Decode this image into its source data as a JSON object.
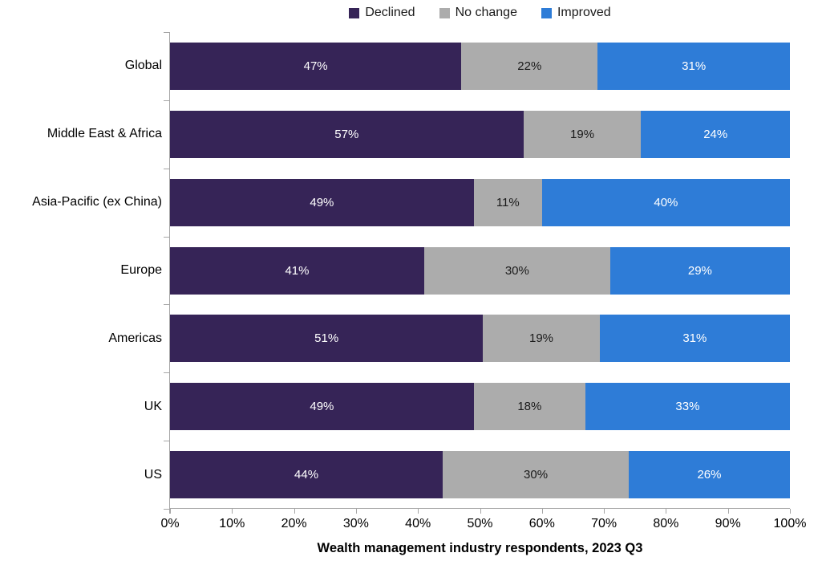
{
  "chart_data": {
    "type": "bar",
    "stacked": true,
    "orientation": "horizontal",
    "categories": [
      "Global",
      "Middle East & Africa",
      "Asia-Pacific (ex China)",
      "Europe",
      "Americas",
      "UK",
      "US"
    ],
    "series": [
      {
        "name": "Declined",
        "color": "#362457",
        "label_color": "#ffffff",
        "values": [
          47,
          57,
          49,
          41,
          51,
          49,
          44
        ]
      },
      {
        "name": "No change",
        "color": "#acacac",
        "label_color": "#1a1a1a",
        "values": [
          22,
          19,
          11,
          30,
          19,
          18,
          30
        ]
      },
      {
        "name": "Improved",
        "color": "#2e7cd7",
        "label_color": "#ffffff",
        "values": [
          31,
          24,
          40,
          29,
          31,
          33,
          26
        ]
      }
    ],
    "value_suffix": "%",
    "xlabel": "Wealth management industry respondents, 2023 Q3",
    "x_ticks": [
      "0%",
      "10%",
      "20%",
      "30%",
      "40%",
      "50%",
      "60%",
      "70%",
      "80%",
      "90%",
      "100%"
    ],
    "xlim": [
      0,
      100
    ],
    "grid": false,
    "legend_position": "top",
    "axis_color": "#a6a6a6",
    "background": "#ffffff"
  }
}
